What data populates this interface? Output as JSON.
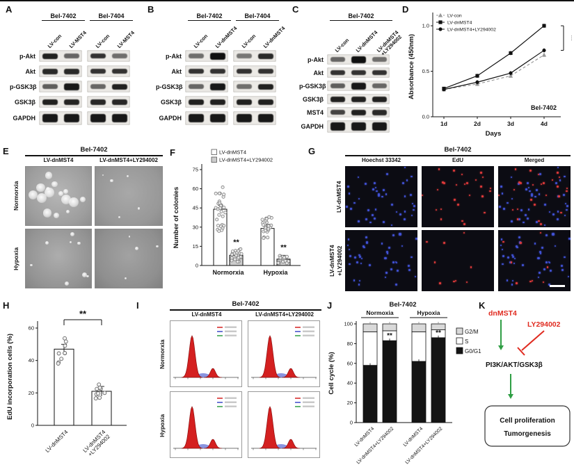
{
  "panels": {
    "A": {
      "label": "A",
      "groups": [
        "Bel-7402",
        "Bel-7404"
      ],
      "lanes": [
        [
          "LV-con",
          "LV-MST4"
        ],
        [
          "LV-con",
          "LV-MST4"
        ]
      ],
      "rows": [
        {
          "name": "p-Akt",
          "intensities": [
            0.9,
            0.5,
            0.8,
            0.45
          ]
        },
        {
          "name": "Akt",
          "intensities": [
            0.85,
            0.85,
            0.8,
            0.8
          ]
        },
        {
          "name": "p-GSK3β",
          "intensities": [
            0.55,
            0.95,
            0.5,
            0.9
          ]
        },
        {
          "name": "GSK3β",
          "intensities": [
            0.9,
            0.88,
            0.86,
            0.86
          ]
        },
        {
          "name": "GAPDH",
          "intensities": [
            0.95,
            0.95,
            0.95,
            0.95
          ],
          "tall": true
        }
      ]
    },
    "B": {
      "label": "B",
      "groups": [
        "Bel-7402",
        "Bel-7404"
      ],
      "lanes": [
        [
          "LV-con",
          "LV-dnMST4"
        ],
        [
          "LV-con",
          "LV-dnMST4"
        ]
      ],
      "rows": [
        {
          "name": "p-Akt",
          "intensities": [
            0.45,
            1.0,
            0.4,
            0.85
          ]
        },
        {
          "name": "Akt",
          "intensities": [
            0.8,
            0.8,
            0.8,
            0.8
          ]
        },
        {
          "name": "p-GSK3β",
          "intensities": [
            0.5,
            0.95,
            0.45,
            0.9
          ]
        },
        {
          "name": "GSK3β",
          "intensities": [
            0.9,
            0.9,
            0.9,
            0.9
          ]
        },
        {
          "name": "GAPDH",
          "intensities": [
            0.95,
            0.95,
            0.95,
            0.95
          ],
          "tall": true
        }
      ]
    },
    "C": {
      "label": "C",
      "groups": [
        "Bel-7402"
      ],
      "lanes": [
        [
          "LV-con",
          "LV-dnMST4",
          "LV-dnMST4\n+LY294002"
        ]
      ],
      "rows": [
        {
          "name": "p-Akt",
          "intensities": [
            0.5,
            1.0,
            0.45
          ]
        },
        {
          "name": "Akt",
          "intensities": [
            0.8,
            0.8,
            0.8
          ]
        },
        {
          "name": "p-GSK3β",
          "intensities": [
            0.55,
            0.95,
            0.5
          ]
        },
        {
          "name": "GSK3β",
          "intensities": [
            0.9,
            0.9,
            0.9
          ]
        },
        {
          "name": "MST4",
          "intensities": [
            0.7,
            0.9,
            0.85
          ]
        },
        {
          "name": "GAPDH",
          "intensities": [
            0.95,
            0.95,
            0.95
          ],
          "tall": true
        }
      ]
    },
    "D": {
      "label": "D"
    },
    "E": {
      "label": "E",
      "title": "Bel-7402",
      "cols": [
        "LV-dnMST4",
        "LV-dnMST4+LY294002"
      ],
      "rows": [
        "Normorxia",
        "Hypoxia"
      ]
    },
    "F": {
      "label": "F"
    },
    "G": {
      "label": "G",
      "title": "Bel-7402",
      "cols": [
        "Hoechst 33342",
        "EdU",
        "Merged"
      ],
      "rows": [
        "LV-dnMST4",
        "LV-dnMST4+LY294002"
      ],
      "row2_lines": [
        "LV-dnMST4",
        "+LY294002"
      ]
    },
    "H": {
      "label": "H"
    },
    "I": {
      "label": "I",
      "title": "Bel-7402",
      "cols": [
        "LV-dnMST4",
        "LV-dnMST4+LY294002"
      ],
      "rows": [
        "Normorxia",
        "Hypoxia"
      ]
    },
    "J": {
      "label": "J"
    },
    "K": {
      "label": "K",
      "activator": "dnMST4",
      "inhibitor": "LY294002",
      "pathway": "PI3K/AKT/GSK3β",
      "outcome_lines": [
        "Cell proliferation",
        "Tumorgenesis"
      ],
      "activator_color": "#e02b20",
      "inhibitor_color": "#e02b20",
      "arrow_color": "#2f9e44",
      "inhibit_color": "#e02b20"
    }
  },
  "chart_data": [
    {
      "id": "D",
      "type": "line",
      "x": [
        "1d",
        "2d",
        "3d",
        "4d"
      ],
      "xlabel": "Days",
      "ylabel": "Absorbance (450nm)",
      "ylim": [
        0,
        1.1
      ],
      "yticks": [
        0,
        0.5,
        1.0
      ],
      "series": [
        {
          "name": "LV-con",
          "values": [
            0.3,
            0.36,
            0.45,
            0.68
          ],
          "marker": "triangle",
          "color": "#999999",
          "dash": true
        },
        {
          "name": "LV-dnMST4",
          "values": [
            0.31,
            0.45,
            0.7,
            1.0
          ],
          "marker": "square",
          "color": "#111111",
          "dash": false
        },
        {
          "name": "LV-dnMST4+LY294002",
          "values": [
            0.3,
            0.38,
            0.48,
            0.73
          ],
          "marker": "circle",
          "color": "#111111",
          "dash": false
        }
      ],
      "annotation": "Bel-7402",
      "sig": "**",
      "legend_position": "top-left",
      "grid": false
    },
    {
      "id": "F",
      "type": "bar-scatter",
      "categories": [
        "Normorxia",
        "Hypoxia"
      ],
      "ylabel": "Number of colonies",
      "ylim": [
        0,
        75
      ],
      "yticks": [
        0,
        15,
        30,
        45,
        60,
        75
      ],
      "series": [
        {
          "name": "LV-dnMST4",
          "fill": "#ffffff",
          "values": [
            44,
            29
          ]
        },
        {
          "name": "LV-dnMST4+LY294002",
          "fill": "#cccccc",
          "values": [
            8,
            5
          ]
        }
      ],
      "sig": [
        "**",
        "**"
      ],
      "legend_position": "top"
    },
    {
      "id": "H",
      "type": "bar-scatter",
      "categories": [
        "LV-dnMST4",
        "LV-dnMST4\n+LY294002"
      ],
      "ylabel": "EdU incorporation cells (%)",
      "ylim": [
        0,
        60
      ],
      "yticks": [
        0,
        20,
        40,
        60
      ],
      "values": [
        47,
        21
      ],
      "sig": "**"
    },
    {
      "id": "J",
      "type": "stacked-bar",
      "title": "Bel-7402",
      "group_headers": [
        "Normoxia",
        "Hypoxia"
      ],
      "categories": [
        "LV-dnMST4",
        "LV-dnMST4+LY294002",
        "LV-dnMST4",
        "LV-dnMST4+LY294002"
      ],
      "ylabel": "Cell cycle (%)",
      "ylim": [
        0,
        100
      ],
      "yticks": [
        0,
        20,
        40,
        60,
        80,
        100
      ],
      "segments": [
        {
          "name": "G2/M",
          "color": "#d9d9d9"
        },
        {
          "name": "S",
          "color": "#ffffff"
        },
        {
          "name": "G0/G1",
          "color": "#141414"
        }
      ],
      "values": [
        {
          "G0/G1": 58,
          "S": 34,
          "G2/M": 8
        },
        {
          "G0/G1": 83,
          "S": 10,
          "G2/M": 7
        },
        {
          "G0/G1": 62,
          "S": 30,
          "G2/M": 8
        },
        {
          "G0/G1": 86,
          "S": 8,
          "G2/M": 6
        }
      ],
      "sig_on": [
        1,
        3
      ],
      "sig": "**",
      "legend_position": "right"
    }
  ]
}
